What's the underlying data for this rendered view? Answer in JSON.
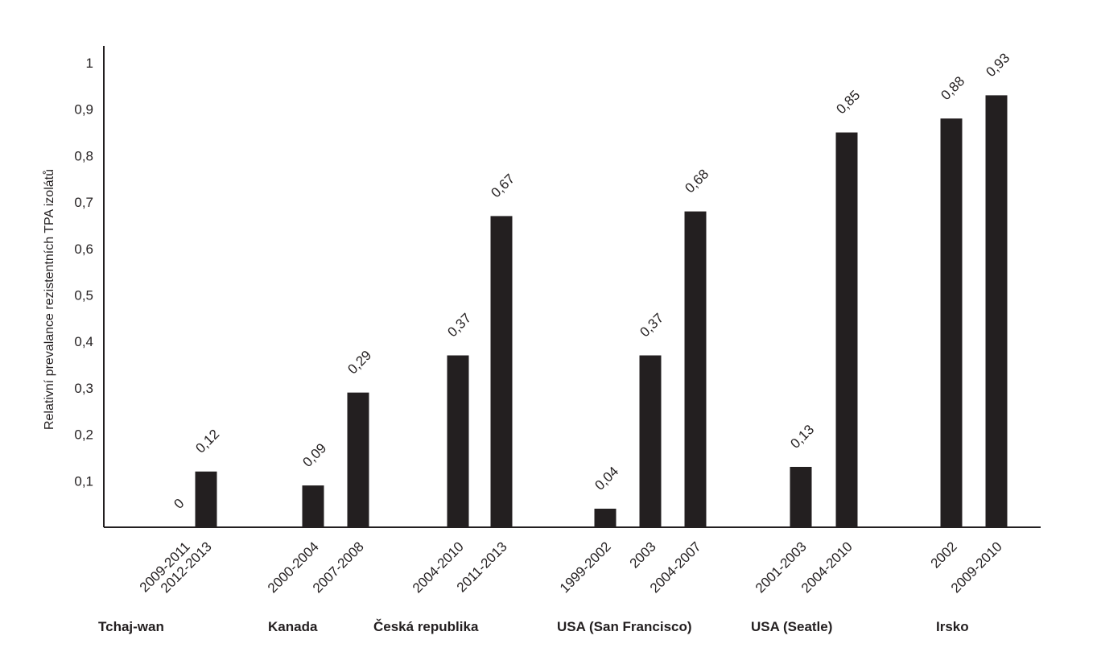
{
  "chart_data": {
    "type": "bar",
    "ylabel": "Relativní prevalance rezistentních TPA izolátů",
    "yticks": [
      "0,1",
      "0,2",
      "0,3",
      "0,4",
      "0,5",
      "0,6",
      "0,7",
      "0,8",
      "0,9",
      "1"
    ],
    "ylim": [
      0,
      1
    ],
    "grid": false,
    "legend": "none",
    "color": "#231f20",
    "groups": [
      {
        "country": "Tchaj-wan",
        "bars": [
          {
            "period": "2009-2011",
            "value": 0,
            "label": "0"
          },
          {
            "period": "2012-2013",
            "value": 0.12,
            "label": "0,12"
          }
        ]
      },
      {
        "country": "Kanada",
        "bars": [
          {
            "period": "2000-2004",
            "value": 0.09,
            "label": "0,09"
          },
          {
            "period": "2007-2008",
            "value": 0.29,
            "label": "0,29"
          }
        ]
      },
      {
        "country": "Česká republika",
        "bars": [
          {
            "period": "2004-2010",
            "value": 0.37,
            "label": "0,37"
          },
          {
            "period": "2011-2013",
            "value": 0.67,
            "label": "0,67"
          }
        ]
      },
      {
        "country": "USA (San Francisco)",
        "bars": [
          {
            "period": "1999-2002",
            "value": 0.04,
            "label": "0,04"
          },
          {
            "period": "2003",
            "value": 0.37,
            "label": "0,37"
          },
          {
            "period": "2004-2007",
            "value": 0.68,
            "label": "0,68"
          }
        ]
      },
      {
        "country": "USA (Seatle)",
        "bars": [
          {
            "period": "2001-2003",
            "value": 0.13,
            "label": "0,13"
          },
          {
            "period": "2004-2010",
            "value": 0.85,
            "label": "0,85"
          }
        ]
      },
      {
        "country": "Irsko",
        "bars": [
          {
            "period": "2002",
            "value": 0.88,
            "label": "0,88"
          },
          {
            "period": "2009-2010",
            "value": 0.93,
            "label": "0,93"
          }
        ]
      }
    ]
  }
}
